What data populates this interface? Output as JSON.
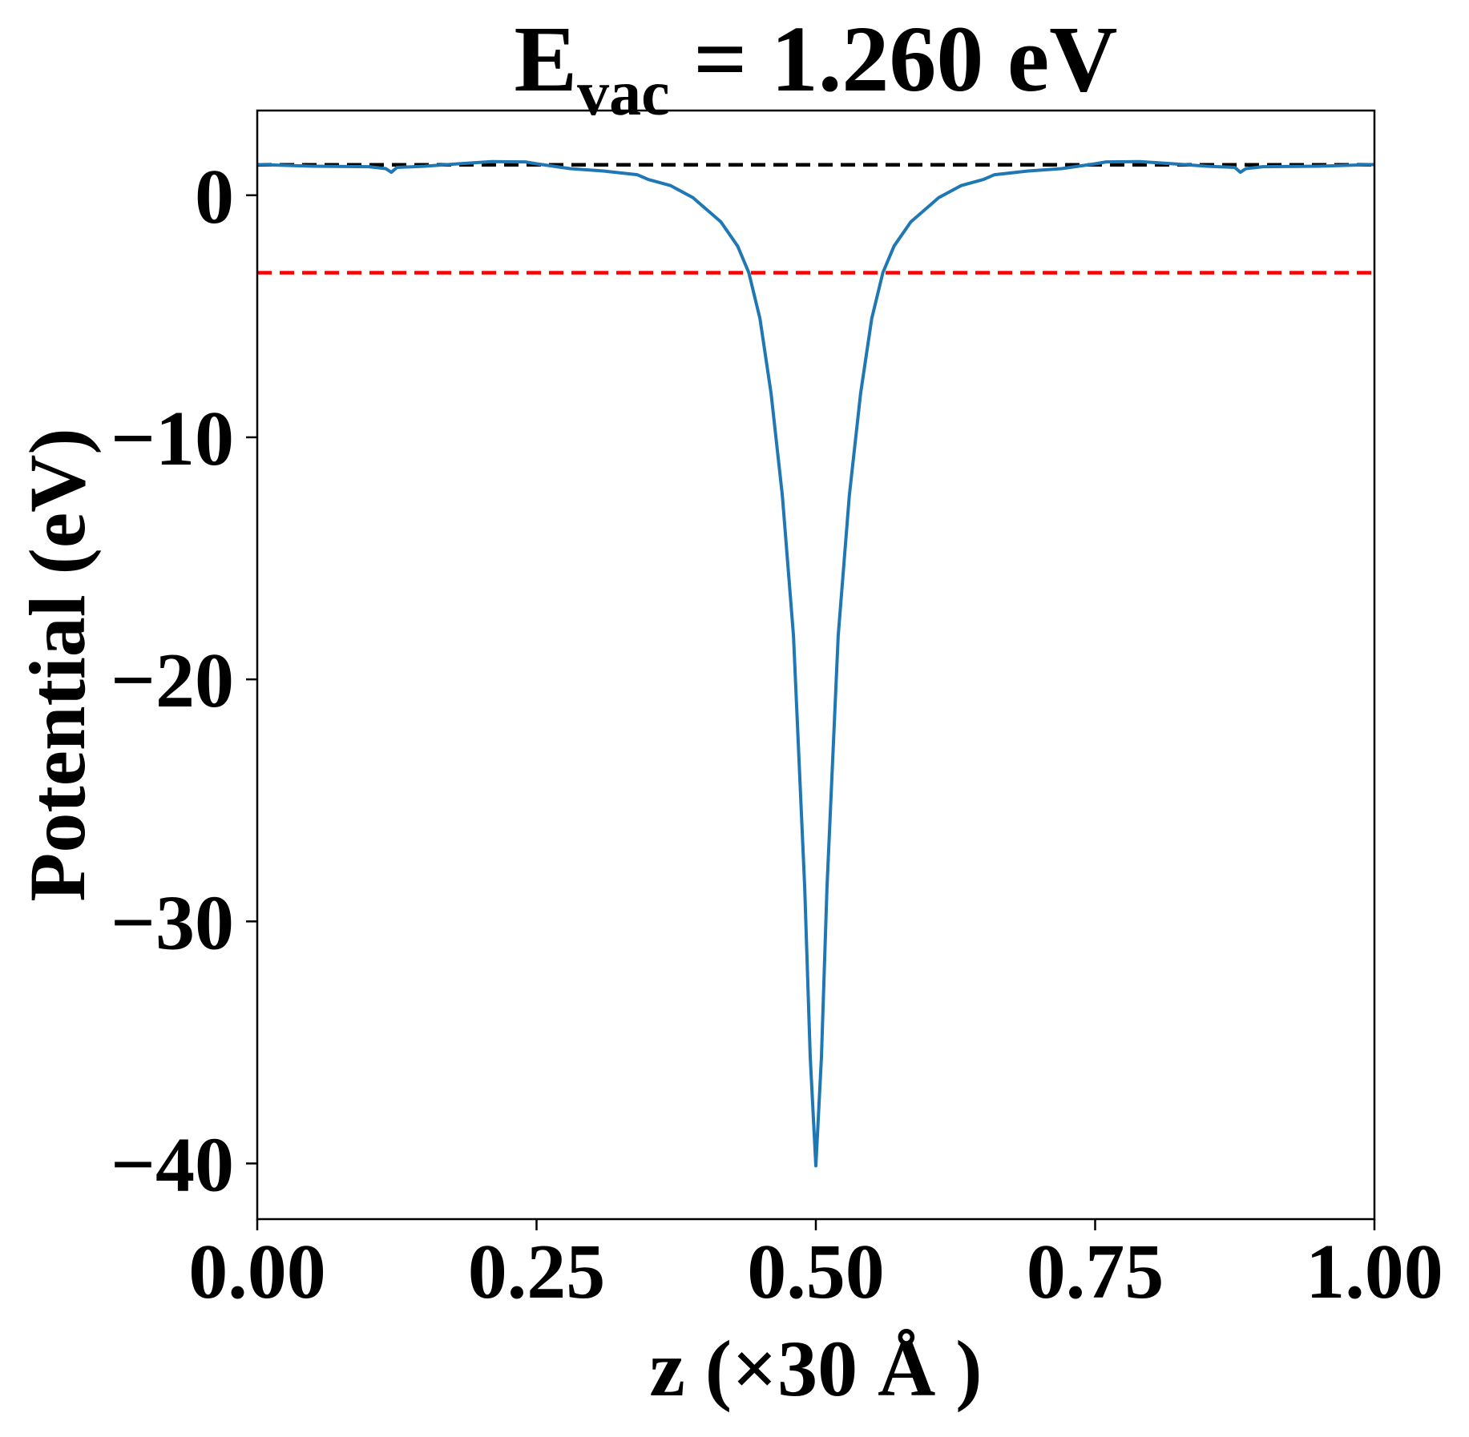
{
  "chart_data": {
    "type": "line",
    "title": "E",
    "title_sub": "vac",
    "title_rest": " = 1.260 eV",
    "xlabel": "z (×30 Å )",
    "ylabel": "Potential (eV)",
    "xlim": [
      0,
      1
    ],
    "ylim": [
      -42.3,
      3.5
    ],
    "xticks": [
      0,
      0.25,
      0.5,
      0.75,
      1
    ],
    "xtick_labels": [
      "0.00",
      "0.25",
      "0.50",
      "0.75",
      "1.00"
    ],
    "yticks": [
      0,
      -10,
      -20,
      -30,
      -40
    ],
    "ytick_labels": [
      "0",
      "−10",
      "−20",
      "−30",
      "−40"
    ],
    "grid": false,
    "hlines": [
      {
        "name": "vacuum-level",
        "y": 1.26,
        "color": "#000000",
        "style": "dashed"
      },
      {
        "name": "fermi-level",
        "y": -3.2,
        "color": "#ff0000",
        "style": "dashed"
      }
    ],
    "series": [
      {
        "name": "planar-averaged-potential",
        "color": "#1f77b4",
        "x": [
          0,
          0.05,
          0.1,
          0.115,
          0.12,
          0.125,
          0.15,
          0.18,
          0.21,
          0.24,
          0.25,
          0.28,
          0.31,
          0.34,
          0.35,
          0.37,
          0.39,
          0.4,
          0.415,
          0.43,
          0.44,
          0.45,
          0.46,
          0.47,
          0.48,
          0.49,
          0.495,
          0.5,
          0.505,
          0.51,
          0.52,
          0.53,
          0.54,
          0.55,
          0.56,
          0.57,
          0.585,
          0.6,
          0.61,
          0.63,
          0.65,
          0.66,
          0.69,
          0.72,
          0.75,
          0.76,
          0.79,
          0.82,
          0.85,
          0.875,
          0.88,
          0.885,
          0.9,
          0.95,
          1.0
        ],
        "y": [
          1.27,
          1.2,
          1.18,
          1.1,
          0.95,
          1.15,
          1.2,
          1.3,
          1.39,
          1.38,
          1.3,
          1.1,
          1.0,
          0.85,
          0.65,
          0.4,
          -0.1,
          -0.5,
          -1.1,
          -2.1,
          -3.2,
          -5.1,
          -8.2,
          -12.4,
          -18.2,
          -28.6,
          -35.6,
          -40.1,
          -35.6,
          -28.6,
          -18.2,
          -12.4,
          -8.2,
          -5.1,
          -3.2,
          -2.1,
          -1.1,
          -0.5,
          -0.1,
          0.4,
          0.65,
          0.85,
          1.0,
          1.1,
          1.3,
          1.38,
          1.39,
          1.3,
          1.2,
          1.15,
          0.95,
          1.1,
          1.18,
          1.2,
          1.27
        ]
      }
    ]
  }
}
